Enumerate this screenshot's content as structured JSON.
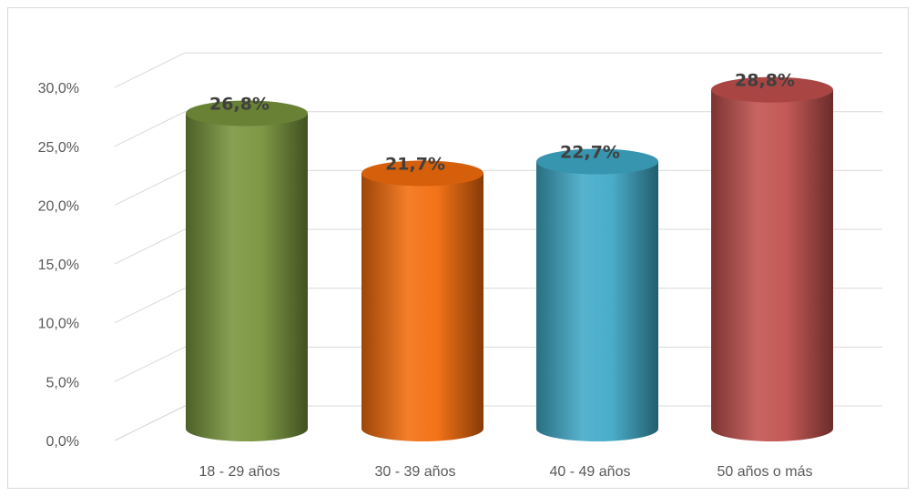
{
  "chart_data": {
    "type": "bar",
    "style": "3d-cylinder",
    "categories": [
      "18 - 29 años",
      "30 - 39 años",
      "40 - 49 años",
      "50 años o más"
    ],
    "values": [
      26.8,
      21.7,
      22.7,
      28.8
    ],
    "data_labels": [
      "26,8%",
      "21,7%",
      "22,7%",
      "28,8%"
    ],
    "colors": [
      "#77933c",
      "#f26c0c",
      "#3fa9c7",
      "#c0504d"
    ],
    "ylim": [
      0,
      30
    ],
    "yticks": [
      0,
      5,
      10,
      15,
      20,
      25,
      30
    ],
    "ytick_labels": [
      "0,0%",
      "5,0%",
      "10,0%",
      "15,0%",
      "20,0%",
      "25,0%",
      "30,0%"
    ],
    "grid": true,
    "legend": "none"
  }
}
